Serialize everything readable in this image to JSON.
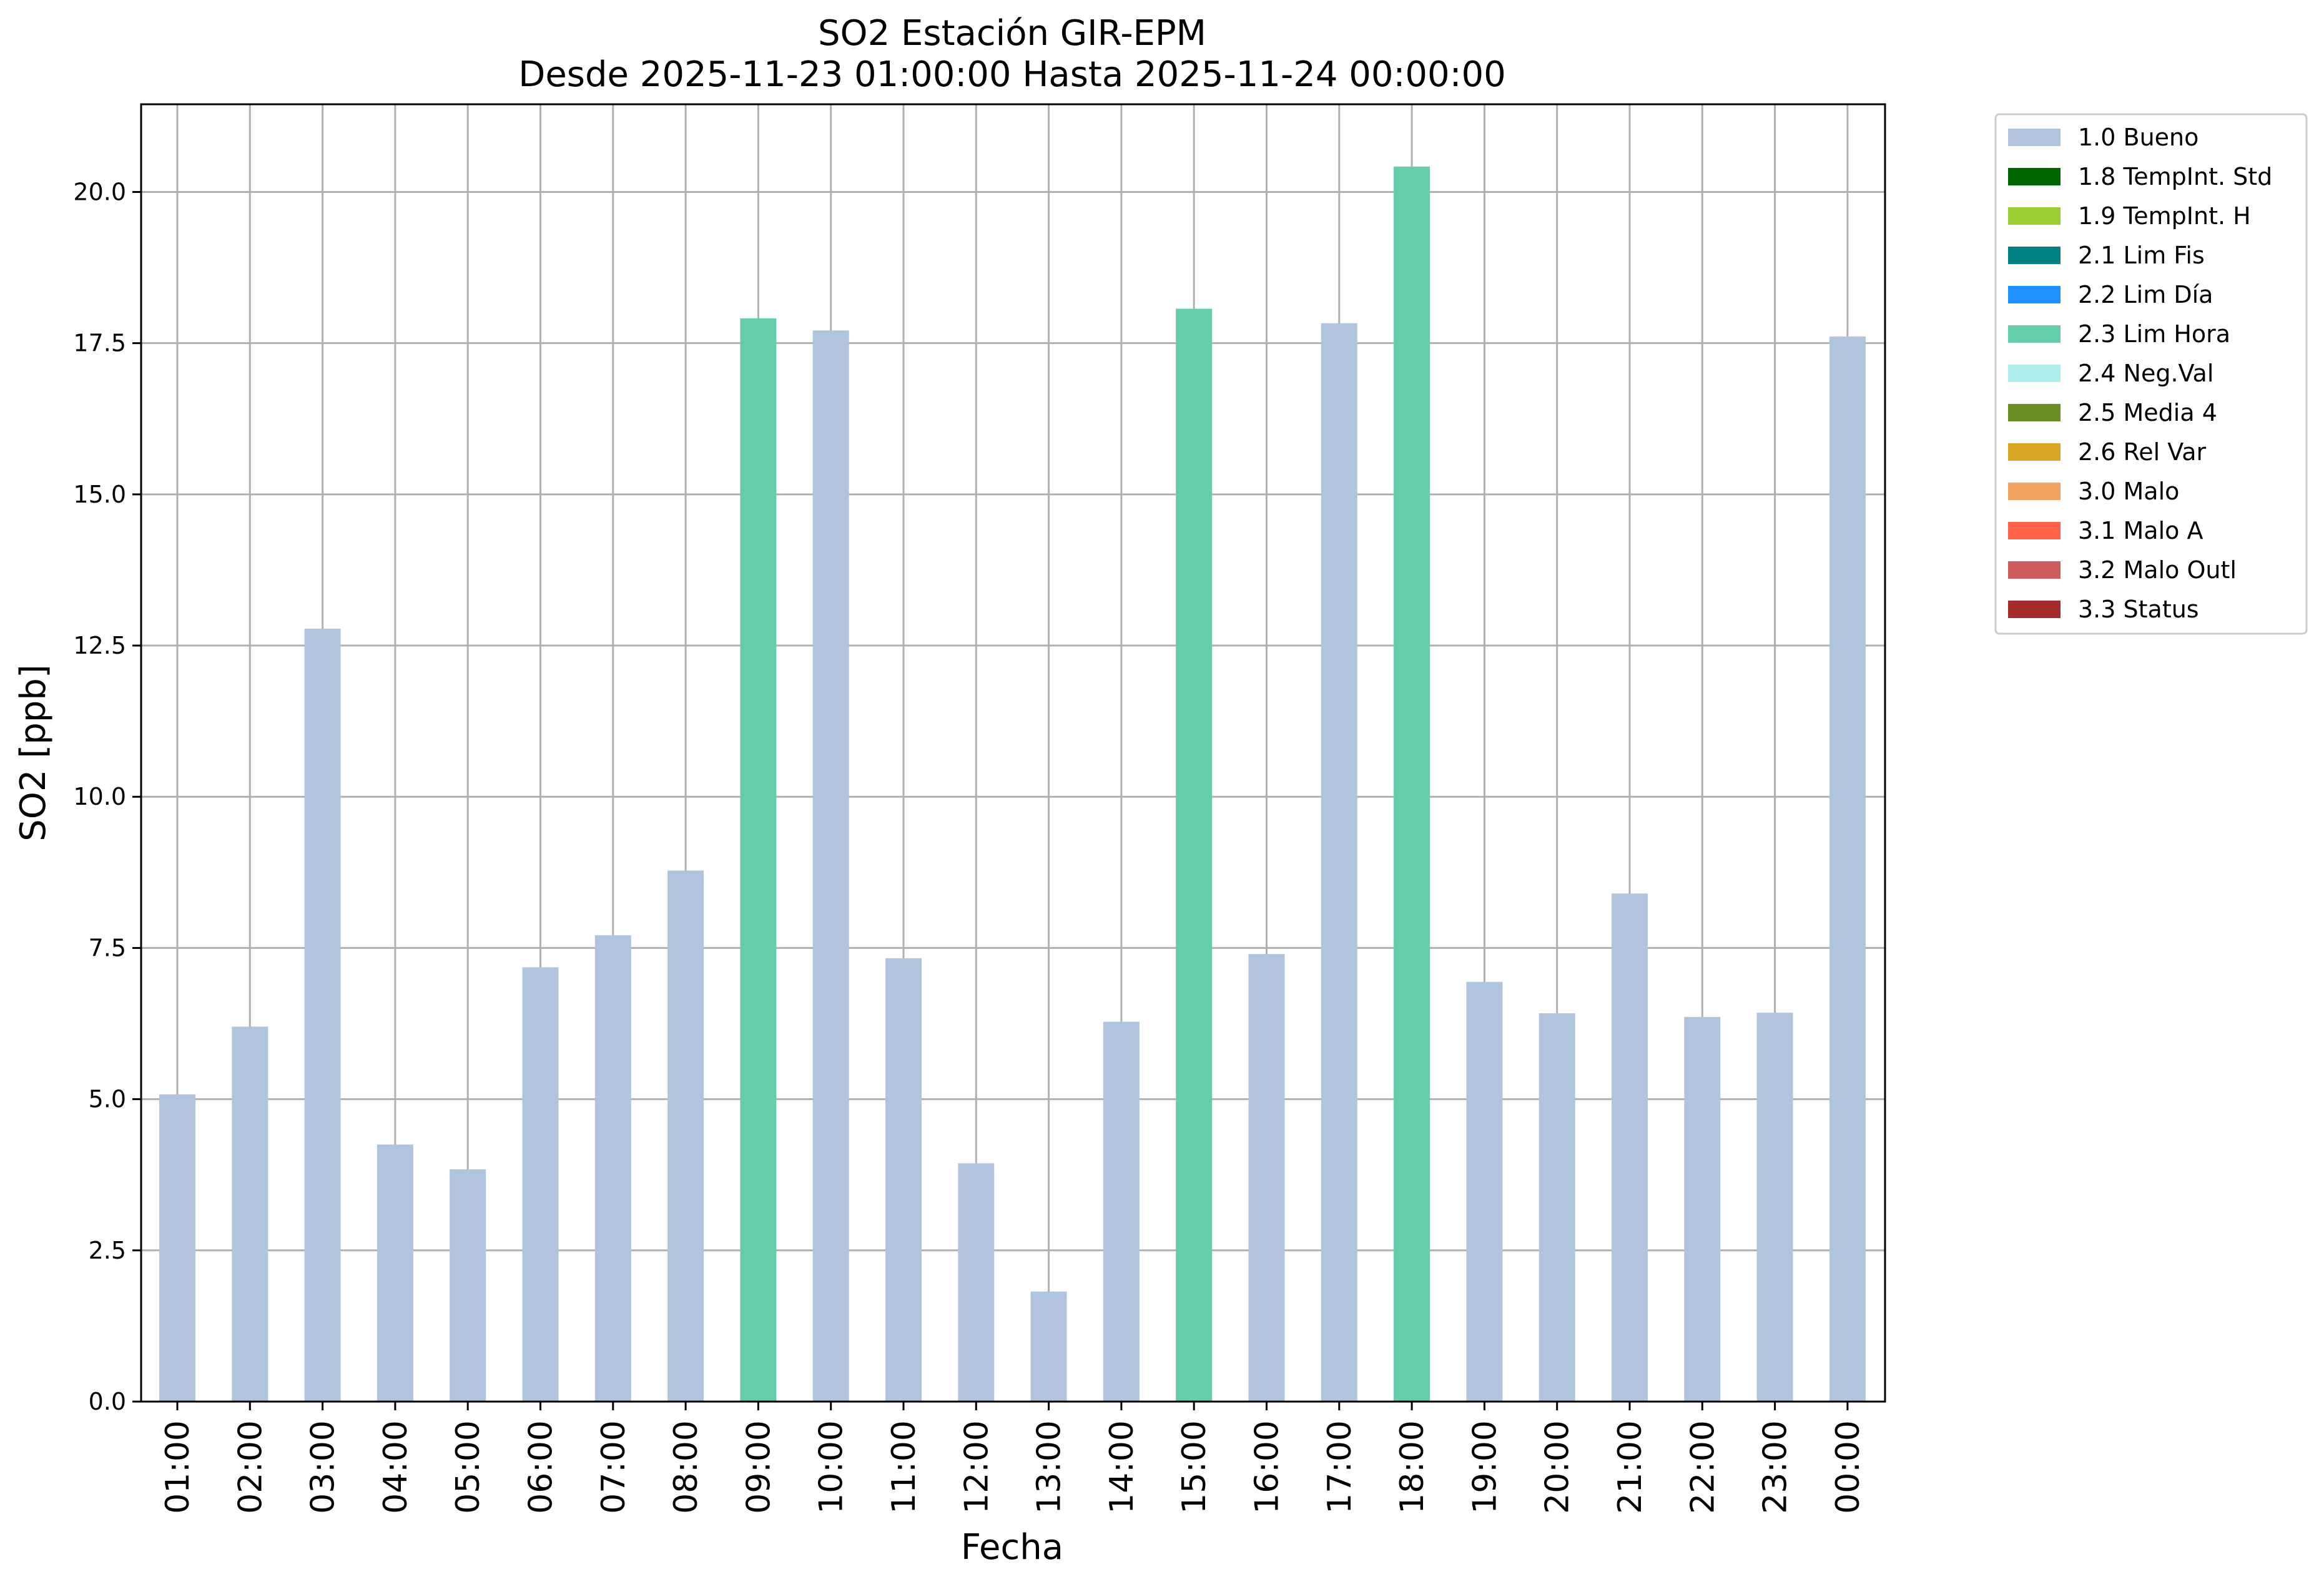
{
  "chart_data": {
    "type": "bar",
    "title": "SO2 Estación GIR-EPM",
    "subtitle": "Desde 2025-11-23 01:00:00 Hasta 2025-11-24 00:00:00",
    "xlabel": "Fecha",
    "ylabel": "SO2 [ppb]",
    "ylim": [
      0,
      21.45
    ],
    "yticks": [
      "0.0",
      "2.5",
      "5.0",
      "7.5",
      "10.0",
      "12.5",
      "15.0",
      "17.5",
      "20.0"
    ],
    "grid": true,
    "legend_position": "outside-top-right",
    "categories": [
      "01:00",
      "02:00",
      "03:00",
      "04:00",
      "05:00",
      "06:00",
      "07:00",
      "08:00",
      "09:00",
      "10:00",
      "11:00",
      "12:00",
      "13:00",
      "14:00",
      "15:00",
      "16:00",
      "17:00",
      "18:00",
      "19:00",
      "20:00",
      "21:00",
      "22:00",
      "23:00",
      "00:00"
    ],
    "values": [
      5.08,
      6.2,
      12.78,
      4.25,
      3.84,
      7.18,
      7.71,
      8.78,
      17.91,
      17.71,
      7.33,
      3.94,
      1.82,
      6.28,
      18.07,
      7.4,
      17.83,
      20.42,
      6.94,
      6.42,
      8.4,
      6.36,
      6.43,
      17.61
    ],
    "flags": [
      "1.0 Bueno",
      "1.0 Bueno",
      "1.0 Bueno",
      "1.0 Bueno",
      "1.0 Bueno",
      "1.0 Bueno",
      "1.0 Bueno",
      "1.0 Bueno",
      "2.3 Lim Hora",
      "1.0 Bueno",
      "1.0 Bueno",
      "1.0 Bueno",
      "1.0 Bueno",
      "1.0 Bueno",
      "2.3 Lim Hora",
      "1.0 Bueno",
      "1.0 Bueno",
      "2.3 Lim Hora",
      "1.0 Bueno",
      "1.0 Bueno",
      "1.0 Bueno",
      "1.0 Bueno",
      "1.0 Bueno",
      "1.0 Bueno"
    ],
    "legend": [
      {
        "label": "1.0 Bueno",
        "color": "#b0c4de"
      },
      {
        "label": "1.8 TempInt. Std",
        "color": "#006400"
      },
      {
        "label": "1.9 TempInt. H",
        "color": "#9acd32"
      },
      {
        "label": "2.1 Lim Fis",
        "color": "#008080"
      },
      {
        "label": "2.2 Lim Día",
        "color": "#1e90ff"
      },
      {
        "label": "2.3 Lim Hora",
        "color": "#66cdaa"
      },
      {
        "label": "2.4 Neg.Val",
        "color": "#afeeee"
      },
      {
        "label": "2.5 Media 4",
        "color": "#6b8e23"
      },
      {
        "label": "2.6 Rel Var",
        "color": "#daa520"
      },
      {
        "label": "3.0 Malo",
        "color": "#f4a460"
      },
      {
        "label": "3.1 Malo A",
        "color": "#ff6347"
      },
      {
        "label": "3.2 Malo Outl",
        "color": "#cd5c5c"
      },
      {
        "label": "3.3 Status",
        "color": "#a52a2a"
      }
    ]
  }
}
